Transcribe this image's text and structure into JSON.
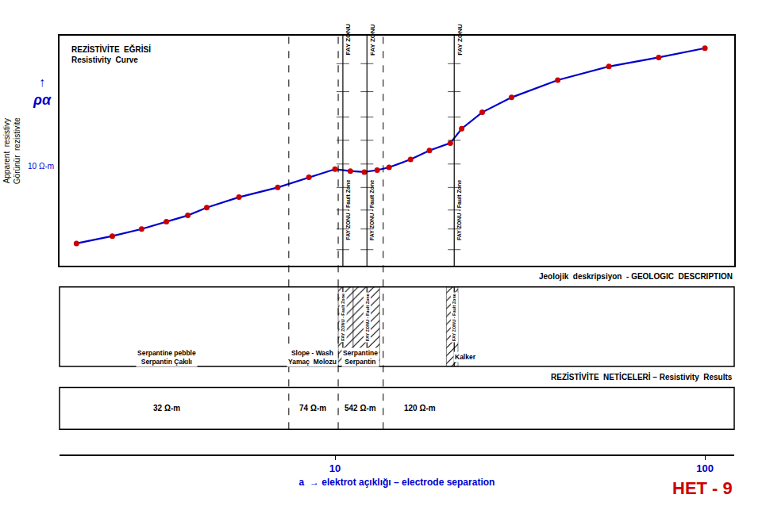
{
  "chart_data": {
    "type": "line",
    "x": [
      2.0,
      2.5,
      3.0,
      3.5,
      4.0,
      4.5,
      5.5,
      7.0,
      8.5,
      10.0,
      11.0,
      12.0,
      13.0,
      14.0,
      16.0,
      18.0,
      20.5,
      22.0,
      25.0,
      30.0,
      40.0,
      55.0,
      75.0,
      100.0
    ],
    "series": [
      {
        "type": "line",
        "color": "#0000CC",
        "values": [
          3.5,
          4.2,
          5.0,
          6.0,
          7.0,
          8.5,
          11.0,
          14.0,
          18.0,
          22.0,
          21.0,
          20.5,
          21.5,
          23.0,
          28.0,
          35.0,
          42.0,
          60.0,
          90.0,
          130.0,
          200.0,
          280.0,
          350.0,
          440.0
        ]
      },
      {
        "type": "scatter",
        "color": "#CC0000",
        "marker": "circle",
        "values": [
          3.5,
          4.2,
          5.0,
          6.0,
          7.0,
          8.5,
          11.0,
          14.0,
          18.0,
          22.0,
          21.0,
          20.5,
          21.5,
          23.0,
          28.0,
          35.0,
          42.0,
          60.0,
          90.0,
          130.0,
          200.0,
          280.0,
          350.0,
          440.0
        ]
      }
    ],
    "xlabel": "a  → elektrot açıklığı – electrode separation",
    "ylabel": "Apparent  resistivy\nGörünür  rezistivite",
    "label_color": "#0000CC",
    "log": true,
    "xlim": [
      1.8,
      120.0
    ],
    "ylim": [
      2.0,
      600.0
    ],
    "xticks": [
      10,
      100
    ],
    "tick_labels": "x",
    "grid": false,
    "curve_label": [
      "REZİSTİVİTE  EĞRİSİ",
      "Resistivity  Curve"
    ],
    "y_axis_notes": [
      "↑",
      "ρα",
      "10 Ω-m"
    ],
    "fault_lines": {
      "x": [
        10.5,
        12.2,
        21.0
      ],
      "ticks_y": [
        3,
        5,
        8,
        14,
        25,
        45,
        80,
        150,
        300
      ],
      "top_labels": {
        "y": 350,
        "texts": [
          "FAY ZONU",
          "FAY ZONU",
          "FAY ZONU"
        ]
      },
      "mid_labels": {
        "y": 8.0,
        "texts": [
          "FAY ZONU - Fault Zone",
          "FAY ZONU - Fault Zone",
          "FAY ZONU - Fault Zone"
        ]
      },
      "section_labels": [
        "FAY ZONU - Fault Zone",
        "FAY ZONU - Fault Zone",
        "FAY ZONU - Fault Zone"
      ]
    },
    "section_dividers": [
      7.5,
      10.2,
      13.5
    ],
    "geo_section": {
      "title": "Jeolojik  deskripsiyon  - GEOLOGIC  DESCRIPTION",
      "hatch_regions": [
        [
          10.2,
          11.2
        ],
        [
          11.2,
          13.2
        ],
        [
          20.0,
          21.5
        ]
      ],
      "labels": [
        {
          "x": 3.5,
          "text": "Serpantine pebble\nSerpantin Çakılı"
        },
        {
          "x": 8.7,
          "text": "Slope - Wash\nYamaç  Molozu"
        },
        {
          "x": 11.7,
          "text": "Serpantine\nSerpantin"
        },
        {
          "x": 22.5,
          "text": "Kalker"
        }
      ]
    },
    "results_section": {
      "title": "REZİSTİVİTE  NETİCELERİ – Resistivity  Results",
      "labels": [
        {
          "x": 3.5,
          "text": "32 Ω-m"
        },
        {
          "x": 8.7,
          "text": "74 Ω-m"
        },
        {
          "x": 11.7,
          "text": "542 Ω-m"
        },
        {
          "x": 17.0,
          "text": "120 Ω-m"
        }
      ]
    },
    "tag": {
      "text": "HET - 9",
      "color": "#CC0000"
    }
  }
}
